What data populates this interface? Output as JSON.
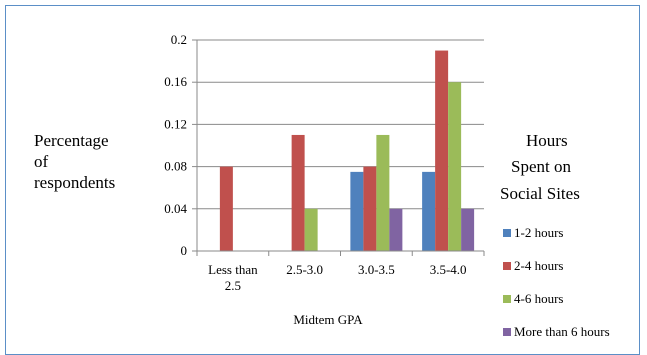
{
  "chart_data": {
    "type": "bar",
    "categories": [
      "Less than 2.5",
      "2.5-3.0",
      "3.0-3.5",
      "3.5-4.0"
    ],
    "series": [
      {
        "name": "1-2 hours",
        "values": [
          0,
          0,
          0.075,
          0.075
        ],
        "color": "#4f81bd"
      },
      {
        "name": "2-4 hours",
        "values": [
          0.08,
          0.11,
          0.08,
          0.19
        ],
        "color": "#c0504d"
      },
      {
        "name": "4-6 hours",
        "values": [
          0,
          0.04,
          0.11,
          0.16
        ],
        "color": "#9bbb59"
      },
      {
        "name": "More than 6 hours",
        "values": [
          0,
          0,
          0.04,
          0.04
        ],
        "color": "#8064a2"
      }
    ],
    "xlabel": "Midtem GPA",
    "ylabel": [
      "Percentage",
      "of",
      "respondents"
    ],
    "ylim": [
      0,
      0.2
    ],
    "yticks": [
      "0",
      "0.04",
      "0.08",
      "0.12",
      "0.16",
      "0.2"
    ],
    "grid": true,
    "legend_title": [
      "Hours",
      "Spent on",
      "Social Sites"
    ],
    "legend_position": "right"
  }
}
